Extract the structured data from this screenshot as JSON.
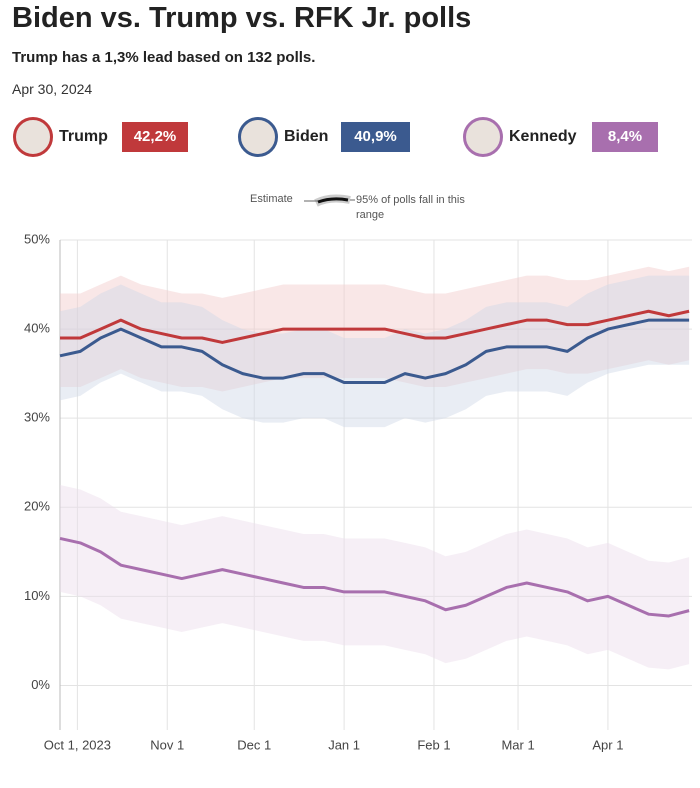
{
  "chart_data": {
    "type": "line",
    "title": "Biden vs. Trump vs. RFK Jr. polls",
    "subtitle": "Trump has a 1,3% lead based on 132 polls.",
    "date": "Apr 30, 2024",
    "legend": {
      "estimate": "Estimate",
      "range": "95% of polls fall in this range"
    },
    "grid": true,
    "xlim": [
      "2023-09-25",
      "2024-04-30"
    ],
    "xticks": [
      {
        "value": "2023-10-01",
        "label": "Oct 1, 2023"
      },
      {
        "value": "2023-11-01",
        "label": "Nov 1"
      },
      {
        "value": "2023-12-01",
        "label": "Dec 1"
      },
      {
        "value": "2024-01-01",
        "label": "Jan 1"
      },
      {
        "value": "2024-02-01",
        "label": "Feb 1"
      },
      {
        "value": "2024-03-01",
        "label": "Mar 1"
      },
      {
        "value": "2024-04-01",
        "label": "Apr 1"
      }
    ],
    "ylim": [
      -5,
      50
    ],
    "yticks": [
      {
        "value": 0,
        "label": "0%"
      },
      {
        "value": 10,
        "label": "10%"
      },
      {
        "value": 20,
        "label": "20%"
      },
      {
        "value": 30,
        "label": "30%"
      },
      {
        "value": 40,
        "label": "40%"
      },
      {
        "value": 50,
        "label": "50%"
      }
    ],
    "x": [
      "2023-09-25",
      "2023-10-02",
      "2023-10-09",
      "2023-10-16",
      "2023-10-23",
      "2023-10-30",
      "2023-11-06",
      "2023-11-13",
      "2023-11-20",
      "2023-11-27",
      "2023-12-04",
      "2023-12-11",
      "2023-12-18",
      "2023-12-25",
      "2024-01-01",
      "2024-01-08",
      "2024-01-15",
      "2024-01-22",
      "2024-01-29",
      "2024-02-05",
      "2024-02-12",
      "2024-02-19",
      "2024-02-26",
      "2024-03-04",
      "2024-03-11",
      "2024-03-18",
      "2024-03-25",
      "2024-04-01",
      "2024-04-08",
      "2024-04-15",
      "2024-04-22",
      "2024-04-29"
    ],
    "series": [
      {
        "name": "Trump",
        "color": "#c0393b",
        "band_color": "#f2c9c9",
        "current": 42.2,
        "value_labels": {
          "current": "42,2%"
        },
        "values": [
          39,
          39,
          40,
          41,
          40,
          39.5,
          39,
          39,
          38.5,
          39,
          39.5,
          40,
          40,
          40,
          40,
          40,
          40,
          39.5,
          39,
          39,
          39.5,
          40,
          40.5,
          41,
          41,
          40.5,
          40.5,
          41,
          41.5,
          42,
          41.5,
          42
        ],
        "upper": [
          44,
          44,
          45,
          46,
          45,
          44.5,
          44,
          44,
          43.5,
          44,
          44.5,
          45,
          45,
          45,
          45,
          45,
          45,
          44.5,
          44,
          44,
          44.5,
          45,
          45.5,
          46,
          46,
          45.5,
          45.5,
          46,
          46.5,
          47,
          46.5,
          47
        ],
        "lower": [
          33.5,
          33.5,
          34.5,
          35.5,
          34.5,
          34,
          33.5,
          33.5,
          33,
          33.5,
          34,
          34.5,
          34.5,
          34.5,
          34.5,
          34.5,
          34.5,
          34,
          33.5,
          33.5,
          34,
          34.5,
          35,
          35.5,
          35.5,
          35,
          35,
          35.5,
          36,
          36.5,
          36,
          36.5
        ]
      },
      {
        "name": "Biden",
        "color": "#3b5a8f",
        "band_color": "#cfd8e6",
        "current": 40.9,
        "value_labels": {
          "current": "40,9%"
        },
        "values": [
          37,
          37.5,
          39,
          40,
          39,
          38,
          38,
          37.5,
          36,
          35,
          34.5,
          34.5,
          35,
          35,
          34,
          34,
          34,
          35,
          34.5,
          35,
          36,
          37.5,
          38,
          38,
          38,
          37.5,
          39,
          40,
          40.5,
          41,
          41,
          41
        ],
        "upper": [
          42,
          42.5,
          44,
          45,
          44,
          43,
          43,
          42.5,
          41,
          40,
          39.5,
          39.5,
          40,
          40,
          39,
          39,
          39,
          40,
          39.5,
          40,
          41,
          42.5,
          43,
          43,
          43,
          42.5,
          44,
          45,
          45.5,
          46,
          46,
          46
        ],
        "lower": [
          32,
          32.5,
          34,
          35,
          34,
          33,
          33,
          32.5,
          31,
          30,
          29.5,
          29.5,
          30,
          30,
          29,
          29,
          29,
          30,
          29.5,
          30,
          31,
          32.5,
          33,
          33,
          33,
          32.5,
          34,
          35,
          35.5,
          36,
          36,
          36
        ]
      },
      {
        "name": "Kennedy",
        "color": "#a86fae",
        "band_color": "#eadcec",
        "current": 8.4,
        "value_labels": {
          "current": "8,4%"
        },
        "values": [
          16.5,
          16,
          15,
          13.5,
          13,
          12.5,
          12,
          12.5,
          13,
          12.5,
          12,
          11.5,
          11,
          11,
          10.5,
          10.5,
          10.5,
          10,
          9.5,
          8.5,
          9,
          10,
          11,
          11.5,
          11,
          10.5,
          9.5,
          10,
          9,
          8,
          7.8,
          8.4
        ],
        "upper": [
          22.5,
          22,
          21,
          19.5,
          19,
          18.5,
          18,
          18.5,
          19,
          18.5,
          18,
          17.5,
          17,
          17,
          16.5,
          16.5,
          16.5,
          16,
          15.5,
          14.5,
          15,
          16,
          17,
          17.5,
          17,
          16.5,
          15.5,
          16,
          15,
          14,
          13.8,
          14.4
        ],
        "lower": [
          10.5,
          10,
          9,
          7.5,
          7,
          6.5,
          6,
          6.5,
          7,
          6.5,
          6,
          5.5,
          5,
          5,
          4.5,
          4.5,
          4.5,
          4,
          3.5,
          2.5,
          3,
          4,
          5,
          5.5,
          5,
          4.5,
          3.5,
          4,
          3,
          2,
          1.8,
          2.4
        ]
      }
    ]
  }
}
